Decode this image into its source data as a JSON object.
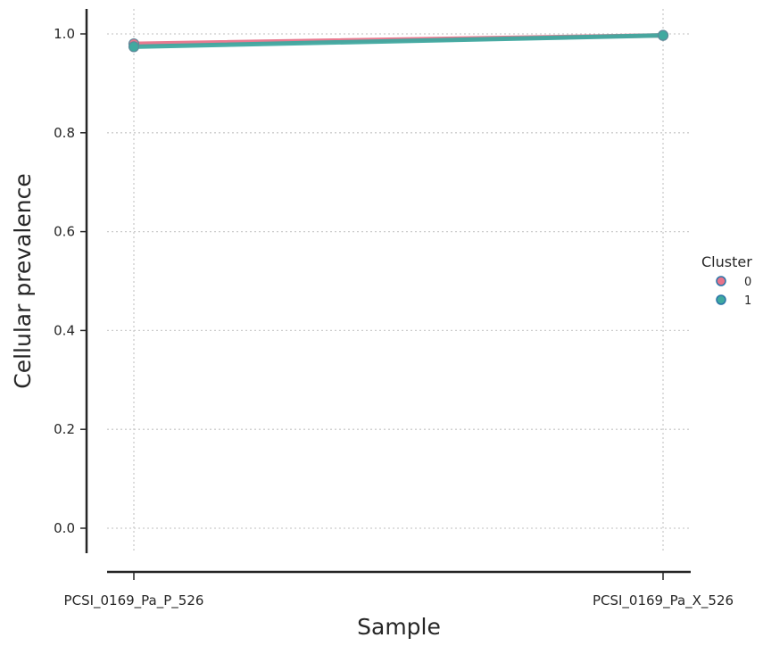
{
  "chart_data": {
    "type": "line",
    "title": "",
    "xlabel": "Sample",
    "ylabel": "Cellular prevalence",
    "categories": [
      "PCSI_0169_Pa_P_526",
      "PCSI_0169_Pa_X_526"
    ],
    "ylim": [
      -0.05,
      1.05
    ],
    "yticks": [
      "0.0",
      "0.2",
      "0.4",
      "0.6",
      "0.8",
      "1.0"
    ],
    "grid": true,
    "legend": {
      "title": "Cluster",
      "placement": "right",
      "entries": [
        {
          "label": "0",
          "color": "#e8738a"
        },
        {
          "label": "1",
          "color": "#3fa9a0"
        }
      ]
    },
    "series": [
      {
        "name": "0",
        "color": "#e8738a",
        "values": [
          0.98,
          0.997
        ]
      },
      {
        "name": "1",
        "color": "#3fa9a0",
        "values": [
          0.974,
          0.997
        ]
      }
    ]
  }
}
